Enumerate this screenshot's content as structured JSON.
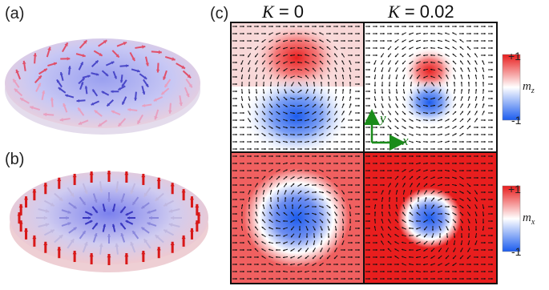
{
  "panels": {
    "a": "(a)",
    "b": "(b)",
    "c": "(c)"
  },
  "columns": [
    {
      "symbol": "K",
      "value": "= 0"
    },
    {
      "symbol": "K",
      "value": "= 0.02"
    }
  ],
  "colorbars": [
    {
      "max": "+1",
      "min": "-1",
      "symbol": "m",
      "sub": "z"
    },
    {
      "max": "+1",
      "min": "-1",
      "symbol": "m",
      "sub": "x"
    }
  ],
  "axes": {
    "y": "y",
    "x": "x",
    "color": "#1a8c1a"
  },
  "colors": {
    "positive": "#ee1c1c",
    "negative": "#1c5cee",
    "neutral": "#ffffff",
    "arrow": "#111111"
  }
}
